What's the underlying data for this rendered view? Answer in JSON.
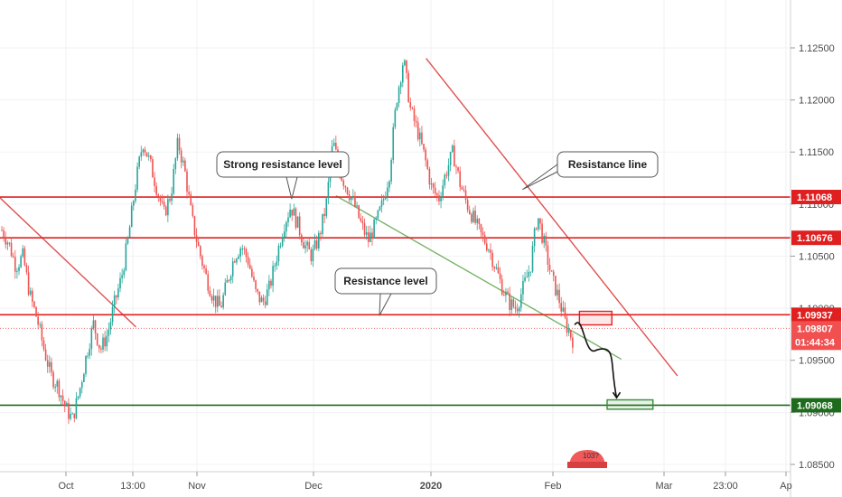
{
  "chart_data": {
    "type": "candlestick",
    "symbol_hint": "EUR/USD daily-style candles",
    "y_axis": {
      "ticks": [
        "1.12500",
        "1.12000",
        "1.11500",
        "1.11000",
        "1.10500",
        "1.10000",
        "1.09500",
        "1.09000",
        "1.08500"
      ],
      "tick_values": [
        1.125,
        1.12,
        1.115,
        1.11,
        1.105,
        1.1,
        1.095,
        1.09,
        1.085
      ],
      "range": [
        1.0843,
        1.1296
      ]
    },
    "x_axis": {
      "ticks": [
        {
          "label": "Oct",
          "bold": false
        },
        {
          "label": "13:00",
          "bold": false
        },
        {
          "label": "Nov",
          "bold": false
        },
        {
          "label": "Dec",
          "bold": false
        },
        {
          "label": "2020",
          "bold": true
        },
        {
          "label": "Feb",
          "bold": false
        },
        {
          "label": "Mar",
          "bold": false
        },
        {
          "label": "23:00",
          "bold": false
        },
        {
          "label": "Ap",
          "bold": false
        }
      ]
    },
    "price_path": [
      1.1075,
      1.1062,
      1.104,
      1.105,
      1.1012,
      1.099,
      1.096,
      1.0935,
      1.0925,
      1.0905,
      1.0893,
      1.092,
      1.0955,
      1.0985,
      1.096,
      1.0975,
      1.1005,
      1.103,
      1.107,
      1.112,
      1.116,
      1.114,
      1.1115,
      1.109,
      1.111,
      1.116,
      1.113,
      1.1085,
      1.1055,
      1.103,
      1.101,
      1.1,
      1.1025,
      1.105,
      1.106,
      1.1045,
      1.1015,
      1.1005,
      1.102,
      1.105,
      1.108,
      1.1098,
      1.108,
      1.106,
      1.105,
      1.1068,
      1.1098,
      1.116,
      1.113,
      1.1115,
      1.11,
      1.108,
      1.1065,
      1.108,
      1.11,
      1.113,
      1.12,
      1.124,
      1.119,
      1.117,
      1.1145,
      1.1115,
      1.1105,
      1.113,
      1.115,
      1.112,
      1.11,
      1.1085,
      1.107,
      1.106,
      1.104,
      1.102,
      1.1005,
      1.1,
      1.102,
      1.104,
      1.109,
      1.106,
      1.103,
      1.101,
      1.0985,
      1.097
    ],
    "horizontal_levels": [
      {
        "value": 1.11068,
        "label": "1.11068",
        "color": "#e02020"
      },
      {
        "value": 1.10676,
        "label": "1.10676",
        "color": "#e02020"
      },
      {
        "value": 1.09937,
        "label": "1.09937",
        "color": "#e02020"
      },
      {
        "value": 1.09068,
        "label": "1.09068",
        "color": "#1e6b1e"
      }
    ],
    "current_price": {
      "value": 1.09807,
      "label": "1.09807",
      "countdown": "01:44:34",
      "color": "#f05050"
    },
    "trend_lines": [
      {
        "name": "red-downtrend-left",
        "color": "#e05050",
        "from": {
          "x_frac": 0.0,
          "y": 1.1106
        },
        "to": {
          "x_frac": 0.172,
          "y": 1.0982
        }
      },
      {
        "name": "red-downtrend-right",
        "color": "#e05050",
        "from": {
          "x_frac": 0.539,
          "y": 1.124
        },
        "to": {
          "x_frac": 0.857,
          "y": 1.0935
        }
      },
      {
        "name": "green-diagonal-support",
        "color": "#7ab46a",
        "from": {
          "x_frac": 0.425,
          "y": 1.1108
        },
        "to": {
          "x_frac": 0.786,
          "y": 1.0951
        }
      }
    ],
    "annotations": [
      {
        "text": "Strong resistance level",
        "arrow_to": {
          "x_frac": 0.369,
          "y": 1.1105
        }
      },
      {
        "text": "Resistance line",
        "arrow_to": {
          "x_frac": 0.661,
          "y": 1.1114
        }
      },
      {
        "text": "Resistance level",
        "arrow_to": {
          "x_frac": 0.48,
          "y": 1.0993
        }
      }
    ],
    "projection": {
      "color": "#111111",
      "path_points": [
        {
          "x_frac": 0.727,
          "y": 1.0984
        },
        {
          "x_frac": 0.755,
          "y": 1.096
        },
        {
          "x_frac": 0.78,
          "y": 1.0914
        }
      ],
      "target_box": {
        "from": {
          "x_frac": 0.768,
          "y": 1.0912
        },
        "to": {
          "x_frac": 0.826,
          "y": 1.0903
        },
        "color": "#3a8a3a"
      },
      "entry_box": {
        "from": {
          "x_frac": 0.733,
          "y": 1.0997
        },
        "to": {
          "x_frac": 0.774,
          "y": 1.0984
        },
        "color": "#e02020"
      }
    },
    "logo_text": "103?"
  }
}
